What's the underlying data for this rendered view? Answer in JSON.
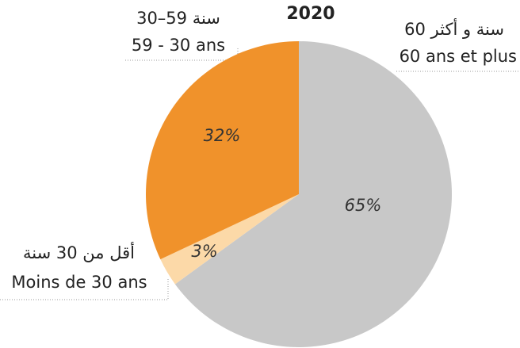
{
  "chart_data": {
    "type": "pie",
    "title": "2020",
    "categories": [
      "60 ans et plus",
      "Moins de 30 ans",
      "59 - 30 ans"
    ],
    "categories_ar": [
      "60 سنة و أكثر",
      "أقل من 30 سنة",
      "30–59 سنة"
    ],
    "values": [
      65,
      3,
      32
    ],
    "value_labels": [
      "65%",
      "3%",
      "32%"
    ],
    "colors": [
      "#c8c8c8",
      "#fcd9a8",
      "#f0922b"
    ]
  }
}
